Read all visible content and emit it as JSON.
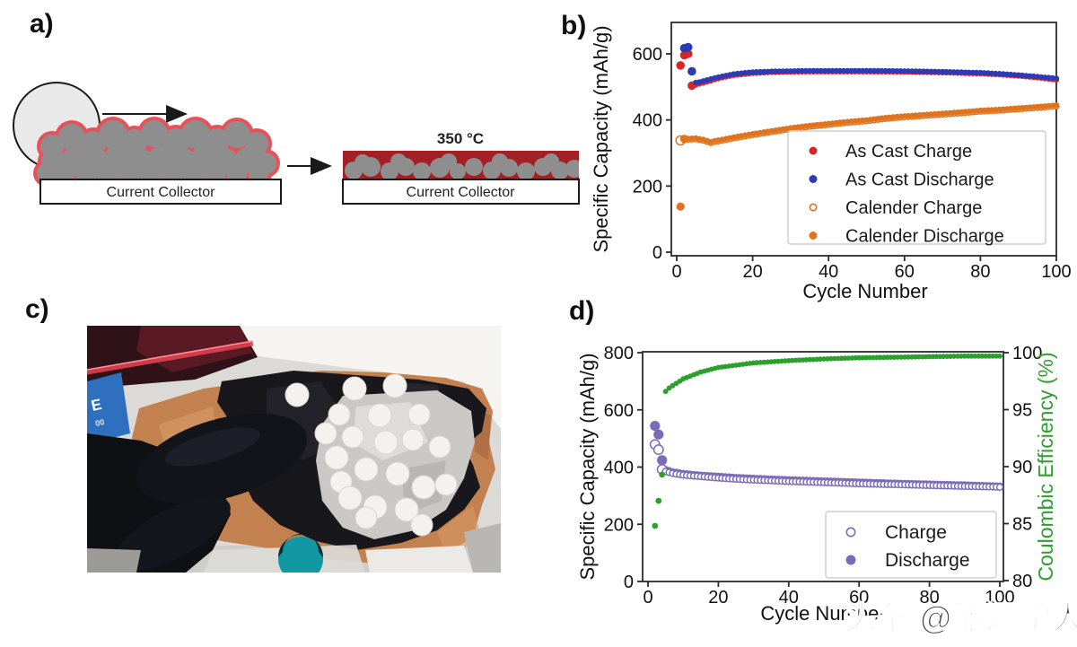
{
  "panel_labels": {
    "a": "a)",
    "b": "b)",
    "c": "c)",
    "d": "d)"
  },
  "panel_a": {
    "temperature_label": "350 °C",
    "current_collector_left": "Current Collector",
    "current_collector_right": "Current Collector"
  },
  "panel_c": {
    "box_text_lines": [
      "E",
      "00"
    ]
  },
  "watermark": {
    "text": "头条 @能源学人"
  },
  "chart_data": [
    {
      "id": "b",
      "type": "scatter",
      "title": "",
      "xlabel": "Cycle Number",
      "ylabel": "Specific Capacity (mAh/g)",
      "xlim": [
        0,
        100
      ],
      "ylim": [
        0,
        700
      ],
      "xticks": [
        0,
        20,
        40,
        60,
        80,
        100
      ],
      "yticks": [
        0,
        200,
        400,
        600
      ],
      "grid": false,
      "legend_position": "lower right",
      "legend_entries": [
        {
          "label": "As Cast Charge",
          "color": "#d62728",
          "marker": "filled"
        },
        {
          "label": "As Cast Discharge",
          "color": "#2c3ab5",
          "marker": "filled"
        },
        {
          "label": "Calender Charge",
          "color": "#e0731d",
          "marker": "open"
        },
        {
          "label": "Calender Discharge",
          "color": "#e0731d",
          "marker": "filled"
        }
      ],
      "series": [
        {
          "name": "Calender Charge",
          "color": "#e0731d",
          "marker": "open",
          "size": 3.0,
          "size_big": 5.0,
          "big_until": 1,
          "anchors": [
            [
              1,
              338
            ],
            [
              3,
              341
            ],
            [
              5,
              342
            ],
            [
              7,
              338
            ],
            [
              9,
              331
            ],
            [
              10,
              334
            ],
            [
              12,
              338
            ],
            [
              15,
              345
            ],
            [
              20,
              355
            ],
            [
              25,
              364
            ],
            [
              30,
              373
            ],
            [
              35,
              380
            ],
            [
              40,
              386
            ],
            [
              45,
              392
            ],
            [
              50,
              397
            ],
            [
              55,
              404
            ],
            [
              60,
              409
            ],
            [
              65,
              413
            ],
            [
              70,
              417
            ],
            [
              75,
              421
            ],
            [
              80,
              426
            ],
            [
              85,
              429
            ],
            [
              90,
              433
            ],
            [
              95,
              437
            ],
            [
              100,
              442
            ]
          ]
        },
        {
          "name": "Calender Discharge",
          "color": "#e0731d",
          "marker": "filled",
          "size": 3.1,
          "size_big": 4.6,
          "big_until": 2,
          "anchors": [
            [
              1,
              138
            ],
            [
              2,
              343
            ],
            [
              3,
              344
            ],
            [
              5,
              345
            ],
            [
              7,
              341
            ],
            [
              9,
              334
            ],
            [
              10,
              337
            ],
            [
              12,
              341
            ],
            [
              15,
              348
            ],
            [
              20,
              358
            ],
            [
              25,
              367
            ],
            [
              30,
              376
            ],
            [
              35,
              383
            ],
            [
              40,
              389
            ],
            [
              45,
              395
            ],
            [
              50,
              400
            ],
            [
              55,
              407
            ],
            [
              60,
              412
            ],
            [
              65,
              416
            ],
            [
              70,
              420
            ],
            [
              75,
              424
            ],
            [
              80,
              429
            ],
            [
              85,
              432
            ],
            [
              90,
              436
            ],
            [
              95,
              440
            ],
            [
              100,
              445
            ]
          ]
        },
        {
          "name": "As Cast Charge",
          "color": "#d62728",
          "marker": "filled",
          "size": 3.1,
          "size_big": 4.8,
          "big_until": 4,
          "anchors": [
            [
              1,
              565
            ],
            [
              2,
              596
            ],
            [
              3,
              600
            ],
            [
              4,
              504
            ],
            [
              5,
              506
            ],
            [
              6,
              509
            ],
            [
              8,
              515
            ],
            [
              10,
              522
            ],
            [
              12,
              528
            ],
            [
              15,
              535
            ],
            [
              20,
              541
            ],
            [
              25,
              544
            ],
            [
              30,
              545
            ],
            [
              35,
              546
            ],
            [
              40,
              546
            ],
            [
              50,
              546
            ],
            [
              60,
              545
            ],
            [
              70,
              543
            ],
            [
              80,
              540
            ],
            [
              85,
              537
            ],
            [
              90,
              533
            ],
            [
              95,
              528
            ],
            [
              100,
              521
            ]
          ]
        },
        {
          "name": "As Cast Discharge",
          "color": "#2c3ab5",
          "marker": "filled",
          "size": 3.1,
          "size_big": 4.8,
          "big_until": 4,
          "anchors": [
            [
              2,
              617
            ],
            [
              3,
              620
            ],
            [
              4,
              547
            ],
            [
              5,
              513
            ],
            [
              6,
              515
            ],
            [
              8,
              521
            ],
            [
              10,
              527
            ],
            [
              12,
              532
            ],
            [
              15,
              539
            ],
            [
              20,
              545
            ],
            [
              25,
              547
            ],
            [
              30,
              548
            ],
            [
              35,
              549
            ],
            [
              40,
              549
            ],
            [
              50,
              549
            ],
            [
              60,
              548
            ],
            [
              70,
              546
            ],
            [
              80,
              543
            ],
            [
              85,
              540
            ],
            [
              90,
              536
            ],
            [
              95,
              531
            ],
            [
              100,
              526
            ]
          ]
        }
      ]
    },
    {
      "id": "d",
      "type": "scatter",
      "title": "",
      "xlabel": "Cycle Number",
      "ylabel": "Specific Capacity (mAh/g)",
      "ylabel_right": "Coulombic Efficiency (%)",
      "ylabel_right_color": "#2ca02c",
      "xlim": [
        0,
        100
      ],
      "ylim": [
        0,
        800
      ],
      "ylim_right": [
        80,
        100
      ],
      "xticks": [
        0,
        20,
        40,
        60,
        80,
        100
      ],
      "yticks": [
        0,
        200,
        400,
        600,
        800
      ],
      "yticks_right": [
        80,
        85,
        90,
        95,
        100
      ],
      "grid": false,
      "legend_position": "lower right",
      "legend_entries": [
        {
          "label": "Charge",
          "color": "#7a6cb6",
          "marker": "open"
        },
        {
          "label": "Discharge",
          "color": "#7a6cb6",
          "marker": "filled"
        }
      ],
      "series": [
        {
          "name": "Discharge",
          "color": "#7a6cb6",
          "marker": "filled",
          "size": 3.6,
          "size_big": 5.6,
          "big_until": 4,
          "anchors": [
            [
              2,
              544
            ],
            [
              3,
              514
            ],
            [
              4,
              424
            ],
            [
              5,
              393
            ],
            [
              7,
              385
            ],
            [
              10,
              379
            ],
            [
              15,
              373
            ],
            [
              20,
              369
            ],
            [
              25,
              365
            ],
            [
              30,
              362
            ],
            [
              40,
              357
            ],
            [
              50,
              353
            ],
            [
              60,
              349
            ],
            [
              70,
              345
            ],
            [
              80,
              342
            ],
            [
              90,
              339
            ],
            [
              100,
              335
            ]
          ]
        },
        {
          "name": "Charge",
          "color": "#7a6cb6",
          "marker": "open",
          "size": 3.4,
          "size_big": 5.2,
          "big_until": 4,
          "anchors": [
            [
              2,
              479
            ],
            [
              3,
              461
            ],
            [
              4,
              392
            ],
            [
              5,
              385
            ],
            [
              7,
              378
            ],
            [
              10,
              372
            ],
            [
              15,
              367
            ],
            [
              20,
              362
            ],
            [
              25,
              358
            ],
            [
              30,
              355
            ],
            [
              40,
              350
            ],
            [
              50,
              346
            ],
            [
              60,
              342
            ],
            [
              70,
              339
            ],
            [
              80,
              336
            ],
            [
              90,
              333
            ],
            [
              100,
              330
            ]
          ]
        },
        {
          "name": "Coulombic Efficiency",
          "color": "#2ca02c",
          "marker": "filled",
          "axis": "right",
          "size": 2.9,
          "size_big": 3.4,
          "big_until": 4,
          "anchors": [
            [
              2,
              84.8
            ],
            [
              3,
              87.0
            ],
            [
              4,
              89.3
            ],
            [
              5,
              96.6
            ],
            [
              6,
              96.9
            ],
            [
              8,
              97.3
            ],
            [
              10,
              97.7
            ],
            [
              15,
              98.3
            ],
            [
              20,
              98.7
            ],
            [
              25,
              98.9
            ],
            [
              30,
              99.1
            ],
            [
              40,
              99.3
            ],
            [
              50,
              99.45
            ],
            [
              60,
              99.55
            ],
            [
              70,
              99.6
            ],
            [
              80,
              99.65
            ],
            [
              90,
              99.7
            ],
            [
              100,
              99.7
            ]
          ]
        }
      ]
    }
  ]
}
